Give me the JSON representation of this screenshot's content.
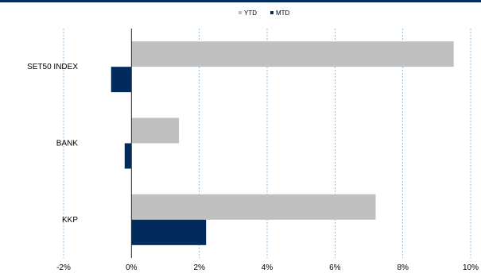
{
  "chart_data": {
    "type": "bar",
    "orientation": "horizontal",
    "categories": [
      "SET50 INDEX",
      "BANK",
      "KKP"
    ],
    "series": [
      {
        "name": "YTD",
        "color": "#c0c0c0",
        "values": [
          9.5,
          1.4,
          7.2
        ]
      },
      {
        "name": "MTD",
        "color": "#002b5c",
        "values": [
          -0.6,
          -0.2,
          2.2
        ]
      }
    ],
    "xlim": [
      -2,
      10
    ],
    "xticks": [
      -2,
      0,
      2,
      4,
      6,
      8,
      10
    ],
    "xtick_labels": [
      "-2%",
      "0%",
      "2%",
      "4%",
      "6%",
      "8%",
      "10%"
    ],
    "grid": "vertical-dashed",
    "legend_position": "top-center",
    "top_rule_color": "#002b5c"
  }
}
